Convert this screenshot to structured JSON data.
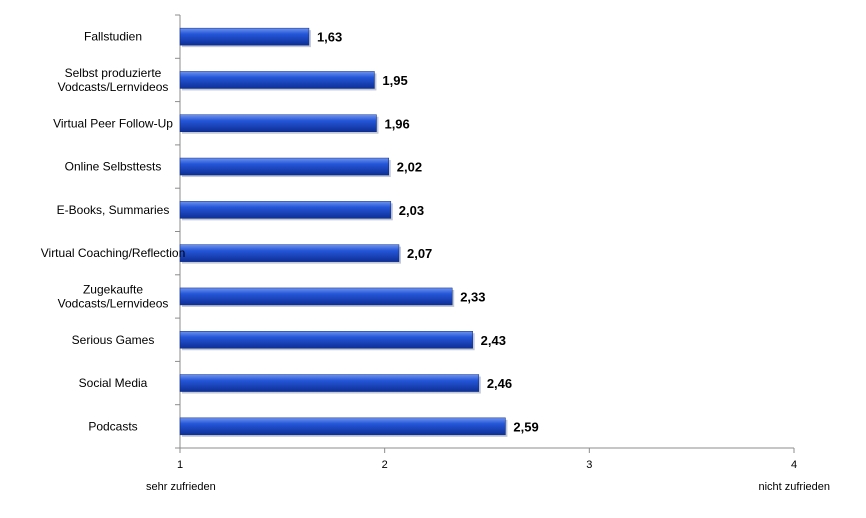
{
  "chart_data": {
    "type": "bar",
    "orientation": "horizontal",
    "categories": [
      [
        "Fallstudien"
      ],
      [
        "Selbst produzierte",
        "Vodcasts/Lernvideos"
      ],
      [
        "Virtual Peer Follow-Up"
      ],
      [
        "Online Selbsttests"
      ],
      [
        "E-Books, Summaries"
      ],
      [
        "Virtual Coaching/Reflection"
      ],
      [
        "Zugekaufte",
        "Vodcasts/Lernvideos"
      ],
      [
        "Serious Games"
      ],
      [
        "Social Media"
      ],
      [
        "Podcasts"
      ]
    ],
    "values": [
      1.63,
      1.95,
      1.96,
      2.02,
      2.03,
      2.07,
      2.33,
      2.43,
      2.46,
      2.59
    ],
    "value_labels": [
      "1,63",
      "1,95",
      "1,96",
      "2,02",
      "2,03",
      "2,07",
      "2,33",
      "2,43",
      "2,46",
      "2,59"
    ],
    "xlim": [
      1,
      4
    ],
    "xticks": [
      1,
      2,
      3,
      4
    ],
    "xtick_labels": [
      "1",
      "2",
      "3",
      "4"
    ],
    "x_min_label": "sehr zufrieden",
    "x_max_label": "nicht zufrieden",
    "bar_color": "#1f4fd0",
    "grid": false,
    "legend": "none"
  }
}
